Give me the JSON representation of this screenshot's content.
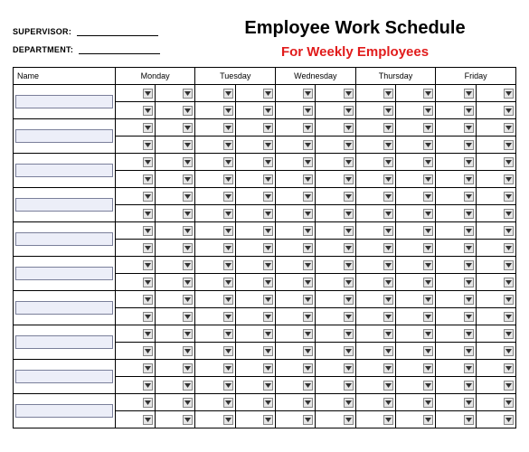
{
  "header": {
    "supervisor_label": "SUPERVISOR:",
    "department_label": "DEPARTMENT:",
    "supervisor_value": "",
    "department_value": "",
    "title": "Employee Work Schedule",
    "subtitle": "For Weekly Employees",
    "subtitle_color": "#e11b1b"
  },
  "table": {
    "columns": [
      "Name",
      "Monday",
      "Tuesday",
      "Wednesday",
      "Thursday",
      "Friday"
    ],
    "num_employee_rows": 10,
    "name_input_bg": "#eceef8",
    "name_input_border": "#7a7f9a",
    "dropdown_btn_bg": "#e6e6e6",
    "dropdown_btn_border": "#888888"
  }
}
